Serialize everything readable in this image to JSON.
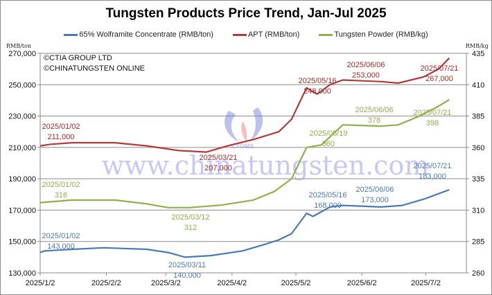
{
  "chart_data": {
    "type": "line",
    "title": "Tungsten Products Price Trend, Jan-Jul 2025",
    "left_axis": {
      "label": "RMB/ton",
      "ticks": [
        "130,000",
        "150,000",
        "170,000",
        "190,000",
        "210,000",
        "230,000",
        "250,000",
        "270,000"
      ],
      "range": [
        130000,
        270000
      ]
    },
    "right_axis": {
      "label": "RMB/kg",
      "ticks": [
        "260",
        "285",
        "310",
        "335",
        "360",
        "385",
        "410",
        "435"
      ],
      "range": [
        260,
        435
      ]
    },
    "x_ticks": [
      "2025/1/2",
      "2025/2/2",
      "2025/3/2",
      "2025/4/2",
      "2025/5/2",
      "2025/6/2",
      "2025/7/2"
    ],
    "grid": true,
    "legend_position": "top",
    "series": [
      {
        "name": "65% Wolframite Concentrate (RMB/ton)",
        "color": "#4a7ab5",
        "axis": "left",
        "points": [
          [
            0,
            143000
          ],
          [
            2,
            144000
          ],
          [
            15,
            145000
          ],
          [
            30,
            146000
          ],
          [
            50,
            145000
          ],
          [
            60,
            143000
          ],
          [
            68,
            140000
          ],
          [
            80,
            141000
          ],
          [
            95,
            144000
          ],
          [
            105,
            148000
          ],
          [
            112,
            151000
          ],
          [
            118,
            155000
          ],
          [
            125,
            168000
          ],
          [
            128,
            166000
          ],
          [
            136,
            172000
          ],
          [
            142,
            173000
          ],
          [
            160,
            172000
          ],
          [
            170,
            173000
          ],
          [
            180,
            177000
          ],
          [
            192,
            183000
          ]
        ]
      },
      {
        "name": "APT (RMB/ton)",
        "color": "#b33a3a",
        "axis": "left",
        "points": [
          [
            0,
            211000
          ],
          [
            5,
            212000
          ],
          [
            15,
            213000
          ],
          [
            35,
            213000
          ],
          [
            50,
            211000
          ],
          [
            65,
            208000
          ],
          [
            78,
            207000
          ],
          [
            88,
            211000
          ],
          [
            100,
            215000
          ],
          [
            112,
            220000
          ],
          [
            118,
            228000
          ],
          [
            125,
            248000
          ],
          [
            130,
            244000
          ],
          [
            136,
            250000
          ],
          [
            142,
            253000
          ],
          [
            160,
            252000
          ],
          [
            168,
            251000
          ],
          [
            180,
            255000
          ],
          [
            187,
            260000
          ],
          [
            192,
            267000
          ]
        ]
      },
      {
        "name": "Tungsten Powder (RMB/kg)",
        "color": "#8fb04a",
        "axis": "right",
        "points": [
          [
            0,
            316
          ],
          [
            15,
            318
          ],
          [
            35,
            318
          ],
          [
            50,
            315
          ],
          [
            60,
            312
          ],
          [
            70,
            312
          ],
          [
            85,
            314
          ],
          [
            100,
            318
          ],
          [
            110,
            325
          ],
          [
            118,
            335
          ],
          [
            125,
            360
          ],
          [
            132,
            362
          ],
          [
            142,
            378
          ],
          [
            160,
            377
          ],
          [
            168,
            378
          ],
          [
            178,
            385
          ],
          [
            186,
            392
          ],
          [
            192,
            398
          ]
        ]
      }
    ],
    "annotations": [
      {
        "series": "APT",
        "date": "2025/01/02",
        "value": "211,000"
      },
      {
        "series": "APT",
        "date": "2025/03/21",
        "value": "207,000"
      },
      {
        "series": "APT",
        "date": "2025/05/16",
        "value": "248,000"
      },
      {
        "series": "APT",
        "date": "2025/06/06",
        "value": "253,000"
      },
      {
        "series": "APT",
        "date": "2025/07/21",
        "value": "267,000"
      },
      {
        "series": "Tungsten Powder",
        "date": "2025/01/02",
        "value": "316"
      },
      {
        "series": "Tungsten Powder",
        "date": "2025/03/12",
        "value": "312"
      },
      {
        "series": "Tungsten Powder",
        "date": "2025/05/19",
        "value": "360"
      },
      {
        "series": "Tungsten Powder",
        "date": "2025/06/06",
        "value": "378"
      },
      {
        "series": "Tungsten Powder",
        "date": "2025/07/21",
        "value": "398"
      },
      {
        "series": "Wolframite",
        "date": "2025/01/02",
        "value": "143,000"
      },
      {
        "series": "Wolframite",
        "date": "2025/03/11",
        "value": "140,000"
      },
      {
        "series": "Wolframite",
        "date": "2025/05/16",
        "value": "168,000"
      },
      {
        "series": "Wolframite",
        "date": "2025/06/06",
        "value": "173,000"
      },
      {
        "series": "Wolframite",
        "date": "2025/07/21",
        "value": "183,000"
      }
    ]
  },
  "copyright": [
    "©CTIA GROUP LTD",
    "©CHINATUNGSTEN ONLINE"
  ],
  "watermark": "www.chinatungsten.com",
  "watermark_logo": "CTOMS"
}
